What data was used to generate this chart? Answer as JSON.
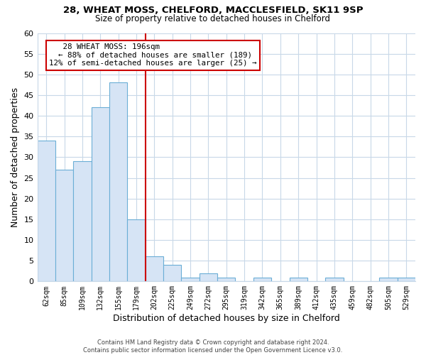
{
  "title1": "28, WHEAT MOSS, CHELFORD, MACCLESFIELD, SK11 9SP",
  "title2": "Size of property relative to detached houses in Chelford",
  "xlabel": "Distribution of detached houses by size in Chelford",
  "ylabel": "Number of detached properties",
  "bar_labels": [
    "62sqm",
    "85sqm",
    "109sqm",
    "132sqm",
    "155sqm",
    "179sqm",
    "202sqm",
    "225sqm",
    "249sqm",
    "272sqm",
    "295sqm",
    "319sqm",
    "342sqm",
    "365sqm",
    "389sqm",
    "412sqm",
    "435sqm",
    "459sqm",
    "482sqm",
    "505sqm",
    "529sqm"
  ],
  "bar_values": [
    34,
    27,
    29,
    42,
    48,
    15,
    6,
    4,
    1,
    2,
    1,
    0,
    1,
    0,
    1,
    0,
    1,
    0,
    0,
    1,
    1
  ],
  "bar_color": "#d6e4f5",
  "bar_edgecolor": "#6baed6",
  "reference_line_x": 6,
  "reference_line_color": "#cc0000",
  "annotation_title": "28 WHEAT MOSS: 196sqm",
  "annotation_line1": "← 88% of detached houses are smaller (189)",
  "annotation_line2": "12% of semi-detached houses are larger (25) →",
  "annotation_box_color": "#ffffff",
  "annotation_box_edgecolor": "#cc0000",
  "ylim": [
    0,
    60
  ],
  "yticks": [
    0,
    5,
    10,
    15,
    20,
    25,
    30,
    35,
    40,
    45,
    50,
    55,
    60
  ],
  "footer1": "Contains HM Land Registry data © Crown copyright and database right 2024.",
  "footer2": "Contains public sector information licensed under the Open Government Licence v3.0.",
  "bg_color": "#ffffff",
  "grid_color": "#c8d8e8"
}
